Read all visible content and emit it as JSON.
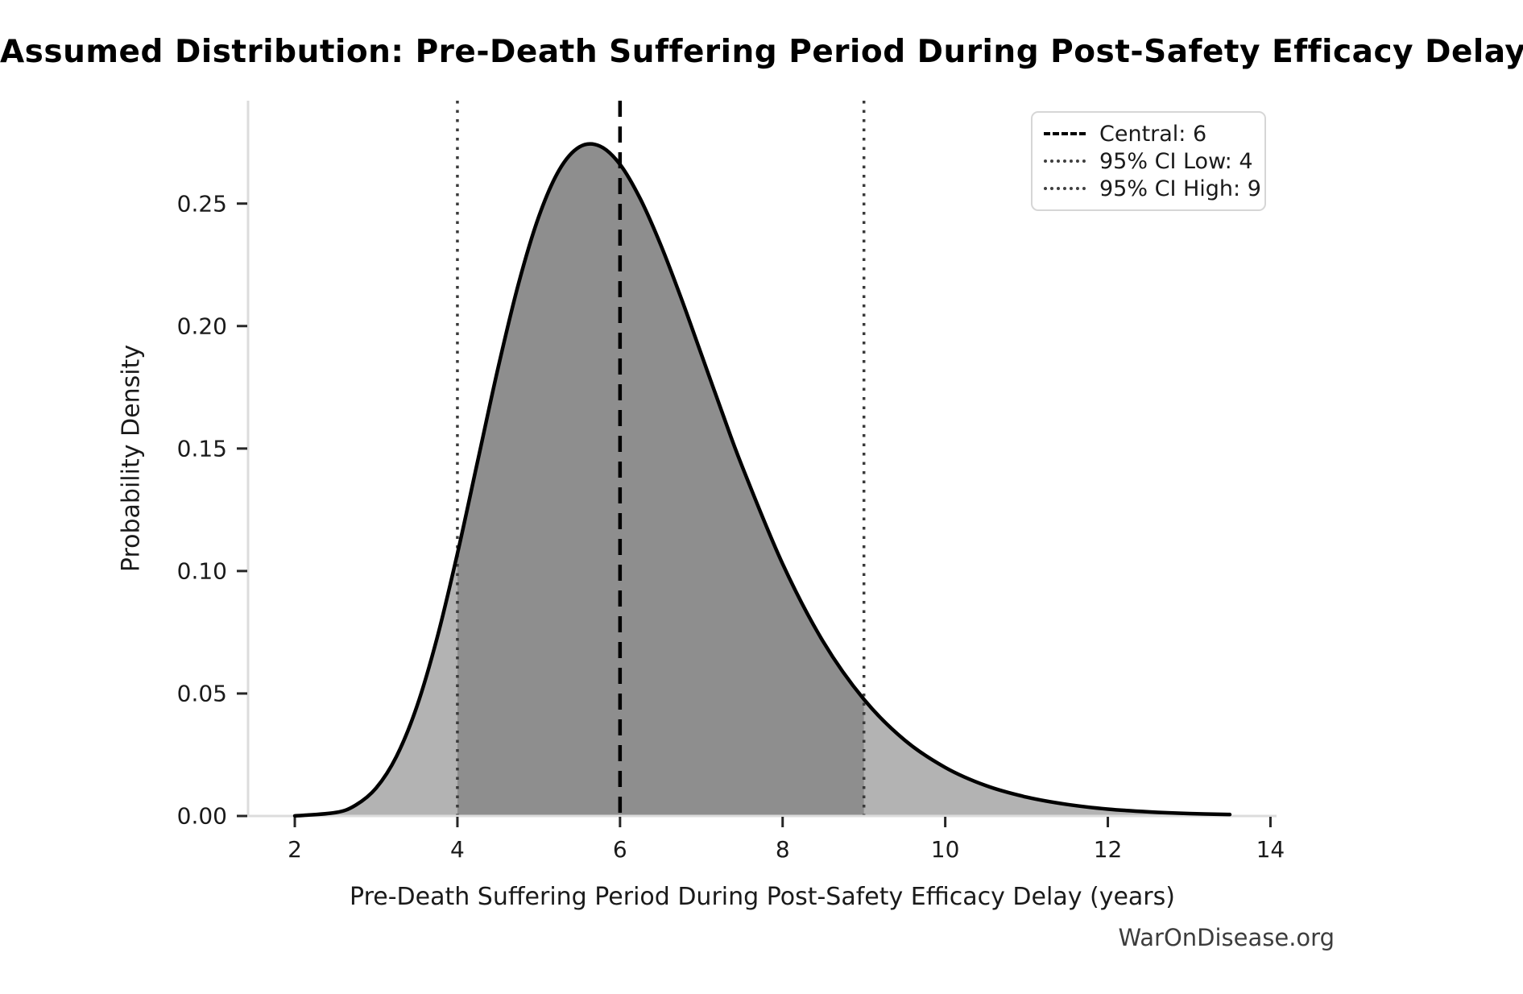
{
  "title": "Assumed Distribution: Pre-Death Suffering Period During Post-Safety Efficacy Delay",
  "watermark": "WarOnDisease.org",
  "colors": {
    "curve": "#000000",
    "fill_light": "#b3b3b3",
    "fill_dark": "#8e8e8e",
    "central_line": "#000000",
    "ci_line": "#3a3a3a",
    "spine": "#dcdcdc",
    "tick": "#262626",
    "text": "#1a1a1a",
    "watermark_text": "#3d3d3d",
    "legend_border": "#d6d6d6"
  },
  "chart_data": {
    "type": "area",
    "title": "Assumed Distribution: Pre-Death Suffering Period During Post-Safety Efficacy Delay",
    "xlabel": "Pre-Death Suffering Period During Post-Safety Efficacy Delay (years)",
    "ylabel": "Probability Density",
    "xlim": [
      1.425,
      14.075
    ],
    "ylim": [
      0,
      0.292
    ],
    "x_ticks": [
      2,
      4,
      6,
      8,
      10,
      12,
      14
    ],
    "y_ticks": [
      "0.00",
      "0.05",
      "0.10",
      "0.15",
      "0.20",
      "0.25"
    ],
    "grid": false,
    "legend_position": "upper right",
    "central": 6,
    "ci_low": 4,
    "ci_high": 9,
    "shaded_region": [
      4,
      9
    ],
    "curve": {
      "x": [
        2.0,
        2.5,
        2.75,
        3.0,
        3.25,
        3.5,
        3.75,
        4.0,
        4.25,
        4.5,
        4.75,
        5.0,
        5.25,
        5.5,
        5.75,
        6.0,
        6.25,
        6.5,
        6.75,
        7.0,
        7.25,
        7.5,
        8.0,
        8.5,
        9.0,
        9.5,
        10.0,
        10.5,
        11.0,
        11.5,
        12.0,
        12.5,
        13.0,
        13.5
      ],
      "density": [
        5e-05,
        0.00139,
        0.00446,
        0.0114,
        0.0243,
        0.0446,
        0.0727,
        0.1071,
        0.145,
        0.1829,
        0.2171,
        0.2446,
        0.2636,
        0.2731,
        0.2735,
        0.266,
        0.2519,
        0.2332,
        0.2116,
        0.1885,
        0.1653,
        0.1429,
        0.1029,
        0.0711,
        0.0476,
        0.031,
        0.0198,
        0.0124,
        0.0077,
        0.0047,
        0.0028,
        0.0017,
        0.001,
        0.0006
      ]
    },
    "legend": [
      {
        "label": "Central: 6",
        "style": "dashed",
        "color": "#000000"
      },
      {
        "label": "95% CI Low: 4",
        "style": "dotted",
        "color": "#3a3a3a"
      },
      {
        "label": "95% CI High: 9",
        "style": "dotted",
        "color": "#3a3a3a"
      }
    ]
  }
}
